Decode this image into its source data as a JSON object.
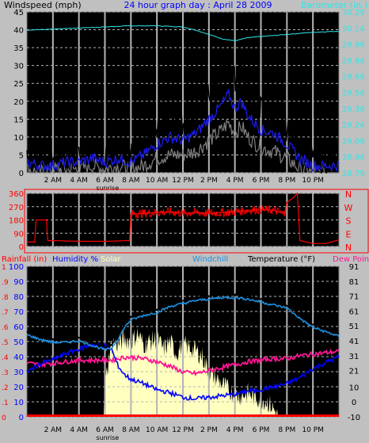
{
  "colors": {
    "background": "#c0c0c0",
    "plot": "#000000",
    "grid": "#b4b4b4",
    "wind_label": "#000000",
    "title": "#0000ff",
    "barometer": "#2ee6e6",
    "gust": "#000000",
    "avg_wind": "#1a1ae6",
    "min_wind": "#808080",
    "direction": "#ff0000",
    "rain": "#ff0000",
    "humidity": "#0000ff",
    "solar": "#ffffc0",
    "windchill": "#1e90e0",
    "temperature": "#000000",
    "dewpoint": "#ff1493",
    "sunrise": "#000000",
    "panel_border": "#ff0000"
  },
  "chart_data": [
    {
      "type": "line",
      "title": "24 hour graph day : April 28 2009",
      "left_axis_label": "Windspeed (mph)",
      "right_axis_label": "Barometer (in.)",
      "x_tick_labels": [
        "2 AM",
        "4 AM",
        "6 AM",
        "8 AM",
        "10 AM",
        "12 PM",
        "2 PM",
        "4 PM",
        "6 PM",
        "8 PM",
        "10 PM"
      ],
      "x_tick_hours": [
        2,
        4,
        6,
        8,
        10,
        12,
        14,
        16,
        18,
        20,
        22
      ],
      "sunrise_label": "sunrise",
      "sunrise_hour": 6.2,
      "x_range": [
        0,
        24
      ],
      "left_axis": {
        "range": [
          0,
          45
        ],
        "ticks": [
          0,
          5,
          10,
          15,
          20,
          25,
          30,
          35,
          40,
          45
        ]
      },
      "right_axis": {
        "range": [
          28.79,
          30.29
        ],
        "ticks": [
          28.79,
          28.94,
          29.09,
          29.24,
          29.39,
          29.54,
          29.69,
          29.84,
          29.99,
          30.14,
          30.29
        ]
      },
      "barometer": {
        "hours": [
          0,
          2,
          4,
          6,
          8,
          10,
          12,
          13,
          14,
          15,
          16,
          17,
          18,
          19,
          20,
          22,
          24
        ],
        "values": [
          30.12,
          30.13,
          30.14,
          30.15,
          30.16,
          30.16,
          30.15,
          30.12,
          30.08,
          30.04,
          30.02,
          30.05,
          30.06,
          30.07,
          30.08,
          30.1,
          30.11
        ]
      },
      "gust": {
        "hours": [
          0,
          1,
          2,
          3,
          4,
          5,
          6,
          7,
          8,
          9,
          10,
          11,
          12,
          13,
          14,
          15,
          15.5,
          16,
          16.5,
          17,
          18,
          19,
          20,
          21,
          22,
          23,
          24
        ],
        "values": [
          5,
          4,
          3,
          4,
          5,
          6,
          4,
          6,
          5,
          8,
          12,
          15,
          14,
          16,
          22,
          28,
          31,
          26,
          30,
          24,
          18,
          16,
          12,
          6,
          4,
          3,
          4
        ]
      },
      "avg_wind": {
        "hours": [
          0,
          1,
          2,
          3,
          4,
          5,
          6,
          7,
          8,
          9,
          10,
          11,
          12,
          13,
          14,
          15,
          15.5,
          16,
          16.5,
          17,
          18,
          19,
          20,
          21,
          22,
          23,
          24
        ],
        "values": [
          3,
          2,
          2,
          3,
          3,
          4,
          3,
          4,
          3,
          5,
          8,
          10,
          9,
          11,
          15,
          19,
          22,
          18,
          20,
          16,
          12,
          11,
          8,
          4,
          2,
          2,
          2
        ]
      },
      "min_wind": {
        "hours": [
          0,
          1,
          2,
          3,
          4,
          5,
          6,
          7,
          8,
          9,
          10,
          11,
          12,
          13,
          14,
          15,
          15.5,
          16,
          16.5,
          17,
          18,
          19,
          20,
          21,
          22,
          23,
          24
        ],
        "values": [
          1,
          0,
          1,
          1,
          1,
          2,
          1,
          2,
          1,
          2,
          4,
          5,
          5,
          6,
          9,
          12,
          14,
          11,
          13,
          10,
          7,
          6,
          4,
          1,
          0,
          0,
          0
        ]
      }
    },
    {
      "type": "line",
      "y_ticks": [
        0,
        90,
        180,
        270,
        360
      ],
      "y_range": [
        0,
        360
      ],
      "compass_labels": [
        "N",
        "W",
        "S",
        "E",
        "N"
      ],
      "direction": {
        "hours": [
          0,
          0.6,
          0.7,
          1.5,
          1.6,
          2,
          4,
          6,
          7.9,
          8.0,
          9,
          10,
          11,
          12,
          13,
          14,
          15,
          16,
          17,
          18,
          19,
          19.8,
          20,
          20.5,
          20.8,
          21,
          22,
          23,
          24
        ],
        "values": [
          30,
          30,
          180,
          180,
          40,
          40,
          35,
          35,
          40,
          220,
          225,
          230,
          235,
          225,
          230,
          225,
          230,
          235,
          245,
          250,
          245,
          220,
          300,
          330,
          360,
          40,
          20,
          20,
          45
        ]
      }
    },
    {
      "type": "line",
      "labels": {
        "rainfall": "Rainfall (in)",
        "humidity": "Humidity %",
        "solar": "Solar",
        "windchill": "Windchill",
        "temperature": "Temperature (°F)",
        "dewpoint": "Dew Point"
      },
      "left_axis": {
        "range": [
          0,
          100
        ],
        "ticks": [
          0,
          10,
          20,
          30,
          40,
          50,
          60,
          70,
          80,
          90,
          100
        ]
      },
      "rain_axis": {
        "range": [
          0,
          1
        ],
        "ticks": [
          0,
          0.1,
          0.2,
          0.3,
          0.4,
          0.5,
          0.6,
          0.7,
          0.8,
          0.9,
          1
        ]
      },
      "right_axis": {
        "range": [
          -10,
          91
        ],
        "ticks": [
          -10,
          0,
          10,
          21,
          31,
          41,
          51,
          61,
          71,
          81,
          91
        ]
      },
      "temperature": {
        "hours": [
          0,
          1,
          2,
          3,
          4,
          5,
          6,
          6.5,
          7,
          7.5,
          8,
          9,
          10,
          11,
          12,
          13,
          14,
          15,
          16,
          17,
          18,
          19,
          20,
          21,
          22,
          23,
          24
        ],
        "values": [
          47,
          44,
          42,
          42,
          43,
          40,
          37,
          38,
          44,
          52,
          57,
          60,
          62,
          66,
          68,
          70,
          71,
          72,
          72,
          71,
          69,
          67,
          65,
          58,
          52,
          49,
          46
        ]
      },
      "windchill": {
        "hours": [
          0,
          1,
          2,
          3,
          4,
          5,
          6,
          6.5,
          7,
          7.5,
          8,
          9,
          10,
          11,
          12,
          13,
          14,
          15,
          16,
          17,
          18,
          19,
          20,
          21,
          22,
          23,
          24
        ],
        "values": [
          45,
          42,
          40,
          40,
          41,
          38,
          35,
          36,
          42,
          50,
          55,
          58,
          60,
          64,
          66,
          68,
          69,
          70,
          70,
          69,
          67,
          65,
          63,
          56,
          50,
          47,
          44
        ]
      },
      "humidity": {
        "hours": [
          0,
          1,
          2,
          3,
          4,
          5,
          6,
          6.5,
          7,
          7.5,
          8,
          9,
          10,
          11,
          12,
          13,
          14,
          15,
          16,
          17,
          18,
          19,
          20,
          21,
          22,
          23,
          24
        ],
        "values": [
          30,
          35,
          38,
          42,
          45,
          48,
          47,
          45,
          34,
          28,
          25,
          22,
          18,
          16,
          13,
          12,
          13,
          14,
          15,
          17,
          18,
          20,
          22,
          26,
          32,
          36,
          40
        ]
      },
      "dewpoint": {
        "hours": [
          0,
          1,
          2,
          3,
          4,
          5,
          6,
          6.5,
          7,
          7.5,
          8,
          9,
          10,
          11,
          12,
          13,
          14,
          15,
          16,
          17,
          18,
          19,
          20,
          21,
          22,
          23,
          24
        ],
        "values": [
          26,
          25,
          26,
          27,
          28,
          28,
          28,
          28,
          29,
          30,
          30,
          29,
          27,
          24,
          20,
          19,
          21,
          23,
          25,
          27,
          28,
          29,
          29,
          31,
          32,
          33,
          34
        ]
      },
      "solar": {
        "hours": [
          0,
          5.9,
          6.0,
          6.4,
          6.7,
          7.0,
          7.5,
          8.0,
          8.5,
          9.0,
          9.5,
          10.0,
          10.5,
          11.0,
          11.5,
          12.0,
          12.5,
          13.0,
          13.5,
          14.0,
          14.5,
          15.0,
          15.5,
          16.0,
          16.5,
          17.0,
          17.5,
          18.0,
          18.5,
          19.0,
          19.3,
          24
        ],
        "values": [
          0,
          0,
          20,
          45,
          50,
          48,
          52,
          50,
          55,
          48,
          50,
          52,
          45,
          50,
          42,
          48,
          46,
          44,
          40,
          30,
          26,
          22,
          18,
          15,
          14,
          16,
          13,
          12,
          10,
          5,
          0,
          0
        ]
      },
      "rain": {
        "hours": [
          0,
          24
        ],
        "values": [
          0,
          0
        ]
      }
    }
  ]
}
